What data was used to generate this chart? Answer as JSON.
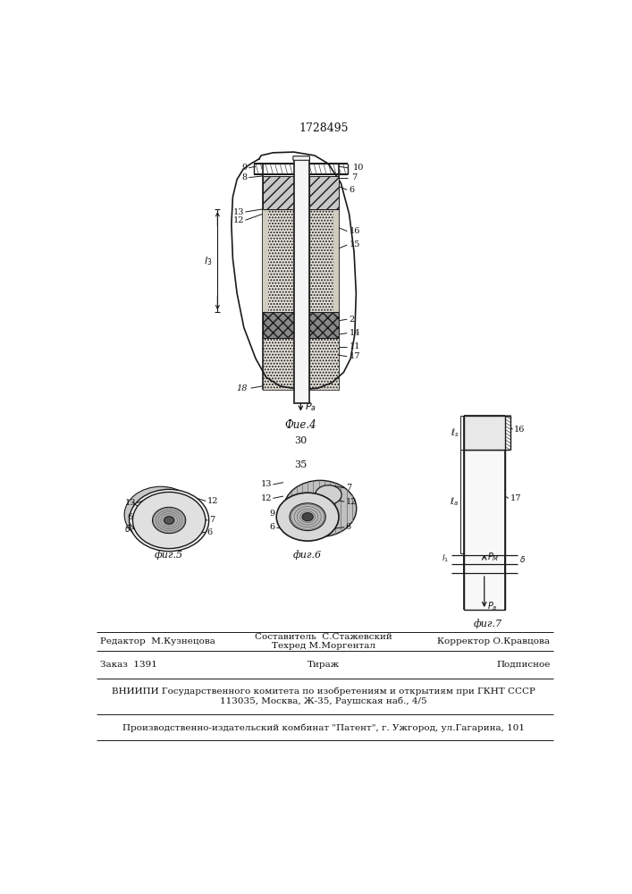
{
  "patent_number": "1728495",
  "bg_color": "#ffffff",
  "line_color": "#1a1a1a",
  "fig4_caption": "Фие.4",
  "fig5_caption": "фиг.5",
  "fig6_caption": "фиг.6",
  "fig7_caption": "фиг.7",
  "label_30": "30",
  "label_35": "35",
  "footer_line1_left": "Редактор  М.Кузнецова",
  "footer_line1_center": "Составитель  С.Стажевский",
  "footer_line2_center": "Техред М.Моргентал",
  "footer_line1_right": "Корректор О.Кравцова",
  "footer_line3_a": "Заказ  1391",
  "footer_line3_b": "Тираж",
  "footer_line3_c": "Подписное",
  "footer_line4": "ВНИИПИ Государственного комитета по изобретениям и открытиям при ГКНТ СССР",
  "footer_line5": "113035, Москва, Ж-35, Раушская наб., 4/5",
  "footer_line6": "Производственно-издательский комбинат \"Патент\", г. Ужгород, ул.Гагарина, 101"
}
